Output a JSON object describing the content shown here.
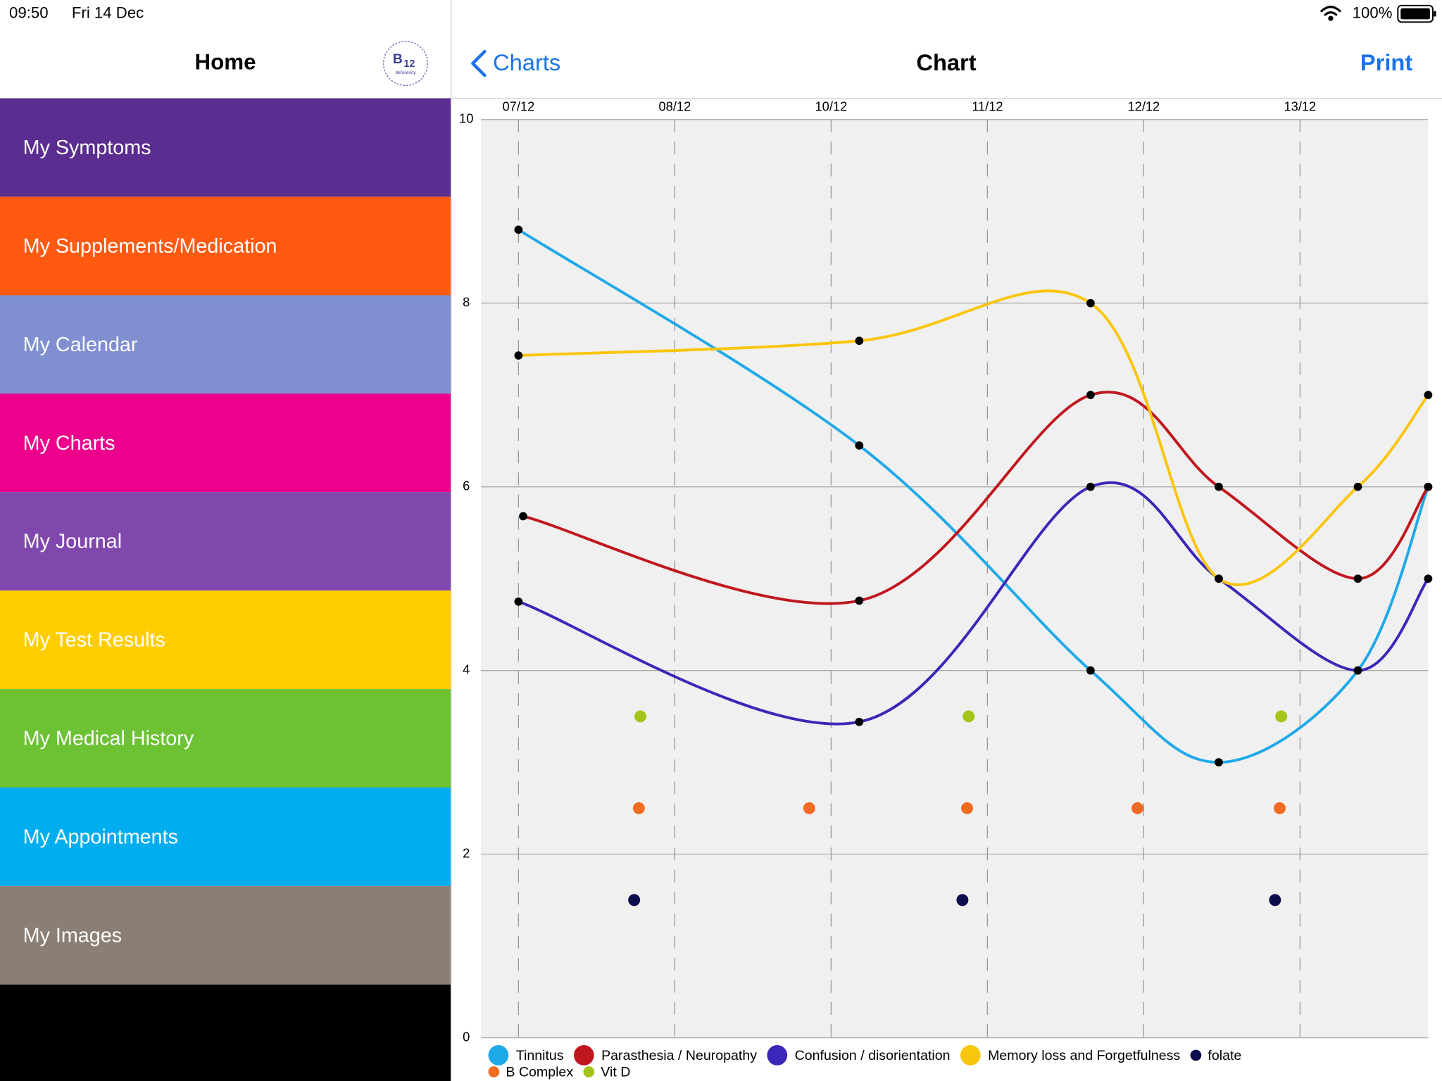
{
  "status": {
    "time": "09:50",
    "date": "Fri 14 Dec",
    "battery": "100%"
  },
  "sidebar": {
    "title": "Home",
    "logo": {
      "main": "B",
      "sub": "12",
      "caption": "deficiency"
    },
    "menu": [
      {
        "label": "My Symptoms",
        "color": "#5b2d90"
      },
      {
        "label": "My Supplements/Medication",
        "color": "#ff5a10"
      },
      {
        "label": "My Calendar",
        "color": "#7f8fd0"
      },
      {
        "label": "My Charts",
        "color": "#ec008c"
      },
      {
        "label": "My Journal",
        "color": "#8047ad"
      },
      {
        "label": "My Test Results",
        "color": "#ffcd00"
      },
      {
        "label": "My Medical History",
        "color": "#6cc233"
      },
      {
        "label": "My Appointments",
        "color": "#00aeef"
      },
      {
        "label": "My Images",
        "color": "#8a7e75"
      }
    ]
  },
  "nav": {
    "back": "Charts",
    "title": "Chart",
    "action": "Print"
  },
  "chart_data": {
    "type": "line",
    "xlim": [
      -0.24,
      5.82
    ],
    "xticks": [
      {
        "value": 0,
        "label": "07/12"
      },
      {
        "value": 1,
        "label": "08/12"
      },
      {
        "value": 2,
        "label": "10/12"
      },
      {
        "value": 3,
        "label": "11/12"
      },
      {
        "value": 4,
        "label": "12/12"
      },
      {
        "value": 5,
        "label": "13/12"
      }
    ],
    "ylim": [
      0,
      10
    ],
    "yticks": [
      0,
      2,
      4,
      6,
      8,
      10
    ],
    "grid": true,
    "legend": "bottom",
    "series": [
      {
        "name": "Tinnitus",
        "color": "#1ea9e8",
        "line": true,
        "x": [
          0,
          2.18,
          3.66,
          4.48,
          5.37,
          5.82
        ],
        "values": [
          8.8,
          6.45,
          4,
          3,
          4,
          6
        ]
      },
      {
        "name": "Parasthesia / Neuropathy",
        "color": "#c0171e",
        "line": true,
        "x": [
          0.03,
          2.18,
          3.66,
          4.48,
          5.37,
          5.82
        ],
        "values": [
          5.68,
          4.76,
          7,
          6,
          5,
          6
        ]
      },
      {
        "name": "Confusion / disorientation",
        "color": "#3a28b8",
        "line": true,
        "x": [
          0,
          2.18,
          3.66,
          4.48,
          5.37,
          5.82
        ],
        "values": [
          4.75,
          3.44,
          6,
          5,
          4,
          5
        ]
      },
      {
        "name": "Memory loss and Forgetfulness",
        "color": "#fac50d",
        "line": true,
        "x": [
          0,
          2.18,
          3.66,
          4.48,
          5.37,
          5.82
        ],
        "values": [
          7.43,
          7.59,
          8,
          5,
          6,
          7
        ]
      },
      {
        "name": "folate",
        "color": "#0d0d4d",
        "line": false,
        "x": [
          0.74,
          2.84,
          4.84
        ],
        "values": [
          1.5,
          1.5,
          1.5
        ]
      },
      {
        "name": "B Complex",
        "color": "#f26b22",
        "line": false,
        "x": [
          0.77,
          1.86,
          2.87,
          3.96,
          4.87
        ],
        "values": [
          2.5,
          2.5,
          2.5,
          2.5,
          2.5
        ]
      },
      {
        "name": "Vit D",
        "color": "#a5c41a",
        "line": false,
        "x": [
          0.78,
          2.88,
          4.88
        ],
        "values": [
          3.5,
          3.5,
          3.5
        ]
      }
    ]
  }
}
